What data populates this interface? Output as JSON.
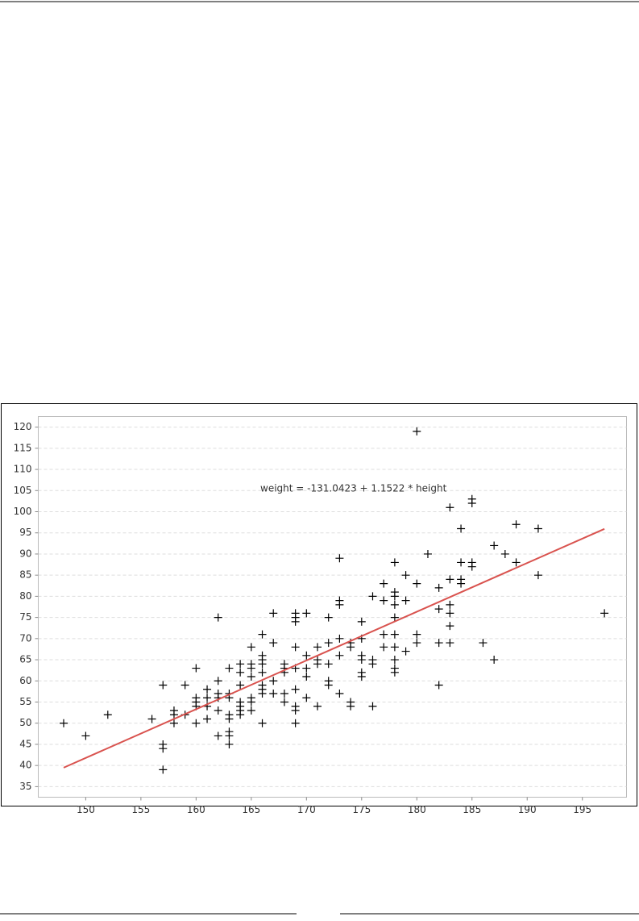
{
  "chart_data": {
    "type": "scatter",
    "annotation": "weight = -131.0423 + 1.1522 * height",
    "xlim": [
      145.7,
      199.0
    ],
    "ylim": [
      32.5,
      122.5
    ],
    "xticks": [
      150,
      155,
      160,
      165,
      170,
      175,
      180,
      185,
      190,
      195
    ],
    "yticks": [
      35,
      40,
      45,
      50,
      55,
      60,
      65,
      70,
      75,
      80,
      85,
      90,
      95,
      100,
      105,
      110,
      115,
      120
    ],
    "grid": true,
    "series": [
      {
        "marker": "plus",
        "color": "#000000",
        "x": [
          148,
          150,
          152,
          156,
          157,
          157,
          157,
          157,
          158,
          158,
          158,
          159,
          159,
          160,
          160,
          160,
          160,
          160,
          161,
          161,
          161,
          161,
          162,
          162,
          162,
          162,
          162,
          162,
          163,
          163,
          163,
          163,
          163,
          163,
          163,
          163,
          164,
          164,
          164,
          164,
          164,
          164,
          164,
          165,
          165,
          165,
          165,
          165,
          165,
          165,
          166,
          166,
          166,
          166,
          166,
          166,
          166,
          166,
          166,
          167,
          167,
          167,
          167,
          168,
          168,
          168,
          168,
          168,
          169,
          169,
          169,
          169,
          169,
          169,
          169,
          169,
          169,
          170,
          170,
          170,
          170,
          170,
          171,
          171,
          171,
          171,
          172,
          172,
          172,
          172,
          172,
          173,
          173,
          173,
          173,
          173,
          173,
          174,
          174,
          174,
          174,
          175,
          175,
          175,
          175,
          175,
          175,
          176,
          176,
          176,
          176,
          177,
          177,
          177,
          177,
          178,
          178,
          178,
          178,
          178,
          178,
          178,
          178,
          178,
          178,
          179,
          179,
          179,
          180,
          180,
          180,
          180,
          181,
          182,
          182,
          182,
          182,
          183,
          183,
          183,
          183,
          183,
          183,
          184,
          184,
          184,
          184,
          185,
          185,
          185,
          185,
          186,
          187,
          187,
          188,
          189,
          189,
          191,
          191,
          197
        ],
        "values": [
          50,
          47,
          52,
          51,
          59,
          45,
          44,
          39,
          53,
          52,
          50,
          59,
          52,
          63,
          56,
          55,
          54,
          50,
          58,
          56,
          54,
          51,
          75,
          60,
          57,
          56,
          53,
          47,
          63,
          57,
          56,
          52,
          51,
          48,
          47,
          45,
          64,
          62,
          59,
          55,
          54,
          53,
          52,
          68,
          64,
          63,
          61,
          56,
          55,
          53,
          71,
          66,
          65,
          64,
          62,
          59,
          58,
          57,
          50,
          76,
          69,
          60,
          57,
          64,
          63,
          62,
          57,
          55,
          76,
          75,
          74,
          68,
          63,
          58,
          54,
          53,
          50,
          76,
          66,
          63,
          61,
          56,
          68,
          65,
          64,
          54,
          75,
          69,
          64,
          60,
          59,
          89,
          79,
          78,
          70,
          66,
          57,
          69,
          68,
          55,
          54,
          74,
          70,
          66,
          65,
          62,
          61,
          80,
          65,
          64,
          54,
          83,
          79,
          71,
          68,
          88,
          81,
          80,
          78,
          75,
          71,
          68,
          65,
          63,
          62,
          85,
          79,
          67,
          119,
          83,
          71,
          69,
          90,
          82,
          77,
          69,
          59,
          101,
          84,
          78,
          76,
          73,
          69,
          96,
          88,
          84,
          83,
          103,
          102,
          88,
          87,
          69,
          92,
          65,
          90,
          97,
          88,
          96,
          85,
          76
        ]
      },
      {
        "marker": "line",
        "color": "#d9534f",
        "x": [
          148,
          197
        ],
        "values": [
          39.48,
          95.94
        ]
      }
    ]
  }
}
